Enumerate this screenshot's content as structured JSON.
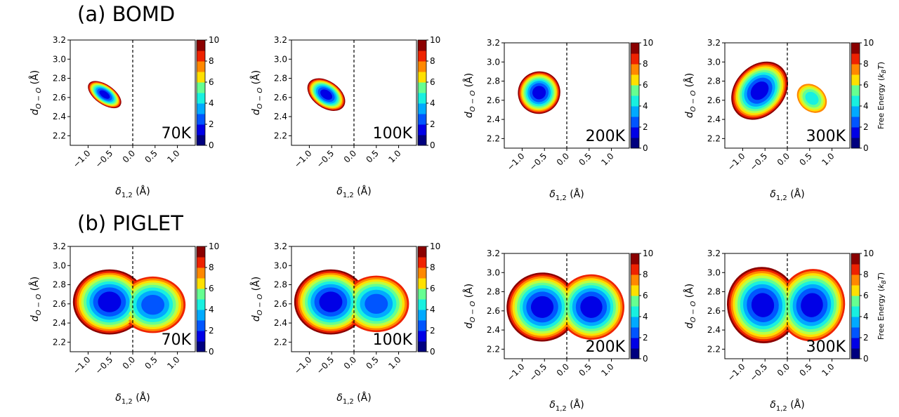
{
  "figure": {
    "rows": [
      {
        "title": "(a) BOMD"
      },
      {
        "title": "(b) PIGLET"
      }
    ]
  },
  "chart_data": [
    {
      "type": "heatmap",
      "method": "BOMD",
      "temperature": "70K",
      "xlabel": "δ1,2 (Å)",
      "ylabel": "dO−O (Å)",
      "xlim": [
        -1.4,
        1.4
      ],
      "ylim": [
        2.1,
        3.2
      ],
      "xticks": [
        "−1.0",
        "−0.5",
        "0.0",
        "0.5",
        "1.0"
      ],
      "yticks": [
        "2.2",
        "2.4",
        "2.6",
        "2.8",
        "3.0",
        "3.2"
      ],
      "colorbar": {
        "ticks": [
          "0",
          "2",
          "4",
          "6",
          "8",
          "10"
        ],
        "label": "",
        "range": [
          0,
          10
        ]
      },
      "dashed_line_x": 0.0,
      "wells": [
        {
          "center": [
            -0.63,
            2.63
          ],
          "rx": 0.22,
          "ry": 0.2,
          "angle": -55
        }
      ]
    },
    {
      "type": "heatmap",
      "method": "BOMD",
      "temperature": "100K",
      "xlabel": "δ1,2 (Å)",
      "ylabel": "dO−O (Å)",
      "xlim": [
        -1.4,
        1.4
      ],
      "ylim": [
        2.1,
        3.2
      ],
      "xticks": [
        "−1.0",
        "−0.5",
        "0.0",
        "0.5",
        "1.0"
      ],
      "yticks": [
        "2.2",
        "2.4",
        "2.6",
        "2.8",
        "3.0",
        "3.2"
      ],
      "colorbar": {
        "ticks": [
          "0",
          "2",
          "4",
          "6",
          "8",
          "10"
        ],
        "label": "",
        "range": [
          0,
          10
        ]
      },
      "dashed_line_x": 0.0,
      "wells": [
        {
          "center": [
            -0.62,
            2.63
          ],
          "rx": 0.3,
          "ry": 0.22,
          "angle": -55
        }
      ]
    },
    {
      "type": "heatmap",
      "method": "BOMD",
      "temperature": "200K",
      "xlabel": "δ1,2 (Å)",
      "ylabel": "dO−O (Å)",
      "xlim": [
        -1.4,
        1.4
      ],
      "ylim": [
        2.1,
        3.2
      ],
      "xticks": [
        "−1.0",
        "−0.5",
        "0.0",
        "0.5",
        "1.0"
      ],
      "yticks": [
        "2.2",
        "2.4",
        "2.6",
        "2.8",
        "3.0",
        "3.2"
      ],
      "colorbar": {
        "ticks": [
          "0",
          "2",
          "4",
          "6",
          "8",
          "10"
        ],
        "label": "",
        "range": [
          0,
          10
        ]
      },
      "dashed_line_x": 0.0,
      "wells": [
        {
          "center": [
            -0.62,
            2.68
          ],
          "rx": 0.48,
          "ry": 0.22,
          "angle": -50
        }
      ]
    },
    {
      "type": "heatmap",
      "method": "BOMD",
      "temperature": "300K",
      "xlabel": "δ1,2 (Å)",
      "ylabel": "dO−O (Å)",
      "xlim": [
        -1.4,
        1.4
      ],
      "ylim": [
        2.1,
        3.2
      ],
      "xticks": [
        "−1.0",
        "−0.5",
        "0.0",
        "0.5",
        "1.0"
      ],
      "yticks": [
        "2.2",
        "2.4",
        "2.6",
        "2.8",
        "3.0",
        "3.2"
      ],
      "colorbar": {
        "ticks": [
          "0",
          "2",
          "4",
          "6",
          "8",
          "10"
        ],
        "label": "Free Energy (kBT)",
        "range": [
          0,
          10
        ]
      },
      "dashed_line_x": 0.0,
      "wells": [
        {
          "center": [
            -0.62,
            2.7
          ],
          "rx": 0.72,
          "ry": 0.26,
          "angle": -48
        },
        {
          "center": [
            0.55,
            2.62
          ],
          "rx": 0.52,
          "ry": 0.19,
          "angle": 42,
          "depth": 0.45
        }
      ]
    },
    {
      "type": "heatmap",
      "method": "PIGLET",
      "temperature": "70K",
      "xlabel": "δ1,2 (Å)",
      "ylabel": "dO−O (Å)",
      "xlim": [
        -1.4,
        1.4
      ],
      "ylim": [
        2.1,
        3.2
      ],
      "xticks": [
        "−1.0",
        "−0.5",
        "0.0",
        "0.5",
        "1.0"
      ],
      "yticks": [
        "2.2",
        "2.4",
        "2.6",
        "2.8",
        "3.0",
        "3.2"
      ],
      "colorbar": {
        "ticks": [
          "0",
          "2",
          "4",
          "6",
          "8",
          "10"
        ],
        "label": "",
        "range": [
          0,
          10
        ]
      },
      "dashed_line_x": 0.0,
      "wells": [
        {
          "center": [
            -0.52,
            2.62
          ],
          "rx": 0.82,
          "ry": 0.34,
          "angle": 0
        },
        {
          "center": [
            0.45,
            2.59
          ],
          "rx": 0.82,
          "ry": 0.33,
          "angle": 0,
          "depth": 0.8
        }
      ]
    },
    {
      "type": "heatmap",
      "method": "PIGLET",
      "temperature": "100K",
      "xlabel": "δ1,2 (Å)",
      "ylabel": "dO−O (Å)",
      "xlim": [
        -1.4,
        1.4
      ],
      "ylim": [
        2.1,
        3.2
      ],
      "xticks": [
        "−1.0",
        "−0.5",
        "0.0",
        "0.5",
        "1.0"
      ],
      "yticks": [
        "2.2",
        "2.4",
        "2.6",
        "2.8",
        "3.0",
        "3.2"
      ],
      "colorbar": {
        "ticks": [
          "0",
          "2",
          "4",
          "6",
          "8",
          "10"
        ],
        "label": "",
        "range": [
          0,
          10
        ]
      },
      "dashed_line_x": 0.0,
      "wells": [
        {
          "center": [
            -0.52,
            2.62
          ],
          "rx": 0.82,
          "ry": 0.34,
          "angle": 0
        },
        {
          "center": [
            0.5,
            2.6
          ],
          "rx": 0.82,
          "ry": 0.33,
          "angle": 0,
          "depth": 0.85
        }
      ]
    },
    {
      "type": "heatmap",
      "method": "PIGLET",
      "temperature": "200K",
      "xlabel": "δ1,2 (Å)",
      "ylabel": "dO−O (Å)",
      "xlim": [
        -1.4,
        1.4
      ],
      "ylim": [
        2.1,
        3.2
      ],
      "xticks": [
        "−1.0",
        "−0.5",
        "0.0",
        "0.5",
        "1.0"
      ],
      "yticks": [
        "2.2",
        "2.4",
        "2.6",
        "2.8",
        "3.0",
        "3.2"
      ],
      "colorbar": {
        "ticks": [
          "0",
          "2",
          "4",
          "6",
          "8",
          "10"
        ],
        "label": "",
        "range": [
          0,
          10
        ]
      },
      "dashed_line_x": 0.0,
      "wells": [
        {
          "center": [
            -0.55,
            2.64
          ],
          "rx": 0.8,
          "ry": 0.36,
          "angle": -8
        },
        {
          "center": [
            0.55,
            2.64
          ],
          "rx": 0.78,
          "ry": 0.36,
          "angle": 8,
          "depth": 0.95
        }
      ]
    },
    {
      "type": "heatmap",
      "method": "PIGLET",
      "temperature": "300K",
      "xlabel": "δ1,2 (Å)",
      "ylabel": "dO−O (Å)",
      "xlim": [
        -1.4,
        1.4
      ],
      "ylim": [
        2.1,
        3.2
      ],
      "xticks": [
        "−1.0",
        "−0.5",
        "0.0",
        "0.5",
        "1.0"
      ],
      "yticks": [
        "2.2",
        "2.4",
        "2.6",
        "2.8",
        "3.0",
        "3.2"
      ],
      "colorbar": {
        "ticks": [
          "0",
          "2",
          "4",
          "6",
          "8",
          "10"
        ],
        "label": "Free Energy (kBT)",
        "range": [
          0,
          10
        ]
      },
      "dashed_line_x": 0.0,
      "wells": [
        {
          "center": [
            -0.55,
            2.66
          ],
          "rx": 0.8,
          "ry": 0.4,
          "angle": -12
        },
        {
          "center": [
            0.55,
            2.66
          ],
          "rx": 0.78,
          "ry": 0.4,
          "angle": 12,
          "depth": 0.95
        }
      ]
    }
  ]
}
